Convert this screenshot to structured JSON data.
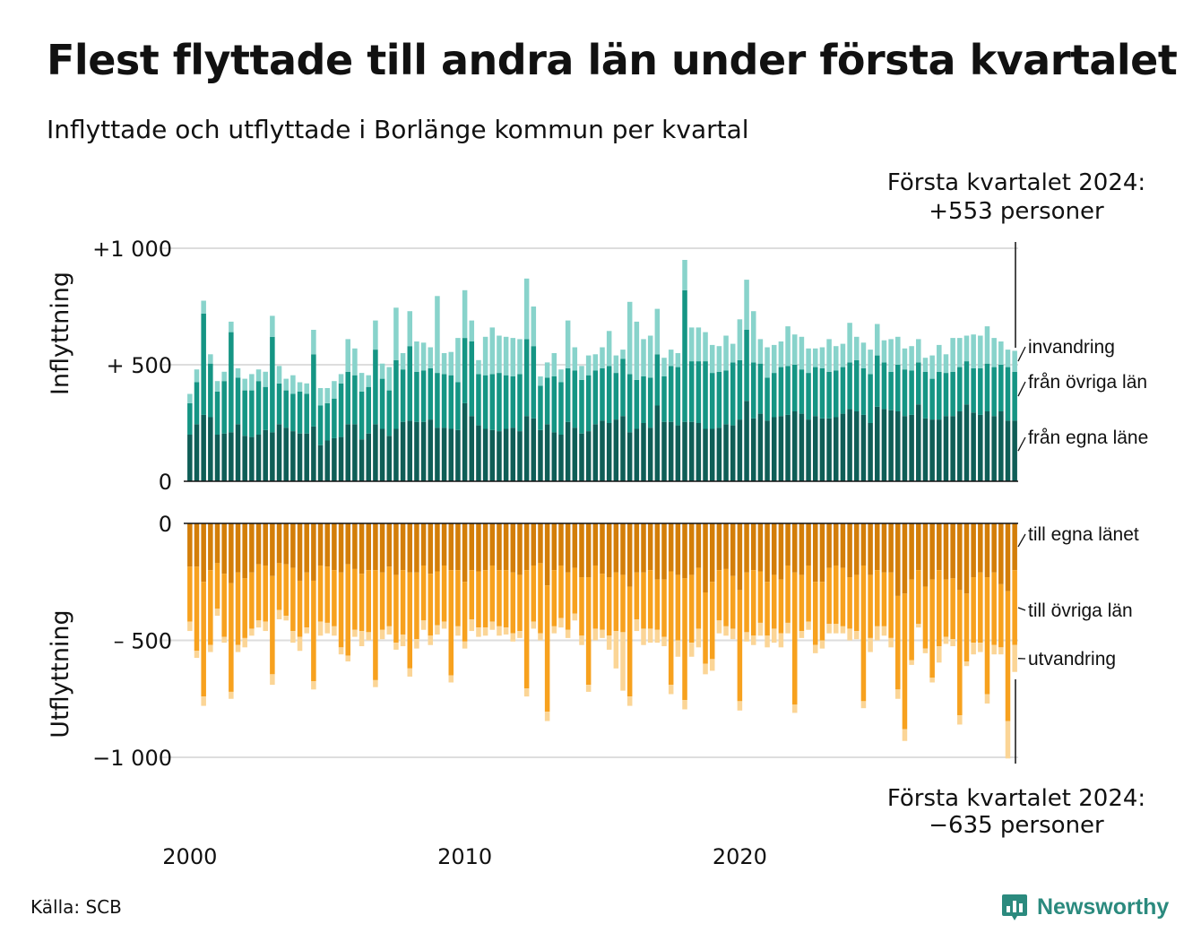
{
  "title": "Flest flyttade till andra län under första kvartalet",
  "subtitle": "Inflyttade och utflyttade i Borlänge kommun per kvartal",
  "source": "Källa: SCB",
  "brand": "Newsworthy",
  "annotations": {
    "in_line1": "Första kvartalet 2024:",
    "in_line2": "+553 personer",
    "out_line1": "Första kvartalet 2024:",
    "out_line2": "−635 personer"
  },
  "colors": {
    "in_egna": "#0f5e57",
    "in_ovriga": "#159584",
    "in_invandring": "#88d3cb",
    "out_egna": "#d37e09",
    "out_ovriga": "#f7a11e",
    "out_utvandring": "#fbd596",
    "brand": "#2b8a7e"
  },
  "chart_data": [
    {
      "type": "bar",
      "stacked": true,
      "panel": "Inflyttning",
      "ylabel": "Inflyttning",
      "ylim": [
        0,
        1000
      ],
      "yticks": [
        0,
        500,
        1000
      ],
      "ytick_labels": [
        "0",
        "+  500",
        "+1 000"
      ],
      "xticks": [
        2000,
        2010,
        2020
      ],
      "x_start": 2000,
      "x_step": 0.25,
      "series": [
        {
          "name": "från egna läne",
          "color": "#0f5e57",
          "values": [
            200,
            245,
            285,
            275,
            200,
            205,
            210,
            245,
            195,
            190,
            200,
            220,
            210,
            245,
            230,
            215,
            205,
            205,
            235,
            155,
            175,
            185,
            190,
            245,
            245,
            180,
            205,
            245,
            225,
            195,
            225,
            255,
            260,
            255,
            255,
            265,
            230,
            230,
            225,
            220,
            335,
            280,
            240,
            225,
            220,
            215,
            225,
            230,
            215,
            280,
            270,
            220,
            245,
            210,
            200,
            255,
            230,
            205,
            215,
            245,
            260,
            250,
            265,
            280,
            210,
            225,
            250,
            230,
            325,
            255,
            255,
            240,
            255,
            255,
            250,
            225,
            225,
            230,
            245,
            240,
            265,
            345,
            270,
            290,
            260,
            275,
            280,
            285,
            300,
            290,
            265,
            280,
            270,
            270,
            275,
            290,
            310,
            300,
            285,
            250,
            320,
            310,
            305,
            300,
            280,
            285,
            330,
            270,
            265,
            265,
            280,
            280,
            300,
            330,
            295,
            285,
            300,
            280,
            300,
            260,
            260
          ]
        },
        {
          "name": "från övriga län",
          "color": "#159584",
          "values": [
            135,
            180,
            435,
            230,
            185,
            225,
            430,
            200,
            195,
            200,
            230,
            185,
            410,
            175,
            160,
            160,
            180,
            170,
            310,
            170,
            160,
            170,
            230,
            225,
            210,
            205,
            200,
            320,
            215,
            195,
            295,
            225,
            320,
            215,
            220,
            220,
            235,
            230,
            230,
            205,
            280,
            320,
            220,
            230,
            240,
            250,
            230,
            220,
            245,
            330,
            310,
            190,
            200,
            240,
            225,
            230,
            245,
            230,
            240,
            230,
            225,
            245,
            200,
            245,
            250,
            210,
            200,
            215,
            220,
            195,
            240,
            250,
            565,
            260,
            265,
            290,
            240,
            240,
            230,
            270,
            255,
            305,
            240,
            215,
            185,
            190,
            210,
            210,
            200,
            190,
            200,
            210,
            215,
            200,
            200,
            200,
            200,
            220,
            200,
            210,
            220,
            200,
            165,
            200,
            200,
            190,
            180,
            200,
            175,
            205,
            185,
            190,
            190,
            185,
            190,
            200,
            205,
            210,
            200,
            230,
            210
          ]
        },
        {
          "name": "invandring",
          "color": "#88d3cb",
          "values": [
            40,
            55,
            55,
            40,
            45,
            40,
            45,
            40,
            50,
            70,
            50,
            65,
            90,
            75,
            50,
            80,
            40,
            45,
            105,
            75,
            65,
            75,
            40,
            140,
            115,
            80,
            50,
            125,
            65,
            100,
            225,
            70,
            150,
            130,
            120,
            90,
            330,
            90,
            100,
            190,
            205,
            90,
            60,
            165,
            200,
            160,
            165,
            165,
            150,
            260,
            170,
            40,
            65,
            100,
            55,
            205,
            100,
            60,
            85,
            70,
            90,
            150,
            75,
            40,
            310,
            250,
            160,
            180,
            195,
            80,
            70,
            60,
            130,
            145,
            145,
            125,
            120,
            110,
            150,
            80,
            175,
            215,
            220,
            105,
            130,
            120,
            110,
            170,
            130,
            140,
            105,
            80,
            90,
            140,
            105,
            100,
            170,
            100,
            110,
            105,
            135,
            95,
            140,
            120,
            90,
            105,
            100,
            60,
            100,
            115,
            80,
            145,
            125,
            110,
            145,
            140,
            160,
            125,
            100,
            75,
            90
          ]
        }
      ]
    },
    {
      "type": "bar",
      "stacked": true,
      "panel": "Utflyttning",
      "ylabel": "Utflyttning",
      "ylim": [
        -1000,
        0
      ],
      "yticks": [
        0,
        -500,
        -1000
      ],
      "ytick_labels": [
        "0",
        "–  500",
        "−1 000"
      ],
      "xticks": [
        2000,
        2010,
        2020
      ],
      "x_start": 2000,
      "x_step": 0.25,
      "series": [
        {
          "name": "till egna länet",
          "color": "#d37e09",
          "values": [
            -185,
            -185,
            -250,
            -200,
            -170,
            -215,
            -255,
            -210,
            -235,
            -210,
            -175,
            -180,
            -225,
            -170,
            -175,
            -190,
            -245,
            -210,
            -245,
            -180,
            -185,
            -200,
            -210,
            -175,
            -195,
            -215,
            -200,
            -200,
            -210,
            -185,
            -220,
            -200,
            -210,
            -210,
            -180,
            -215,
            -205,
            -180,
            -200,
            -200,
            -250,
            -200,
            -205,
            -200,
            -180,
            -200,
            -200,
            -210,
            -220,
            -200,
            -180,
            -170,
            -265,
            -200,
            -180,
            -210,
            -190,
            -230,
            -230,
            -180,
            -215,
            -230,
            -210,
            -220,
            -270,
            -210,
            -210,
            -200,
            -240,
            -240,
            -205,
            -220,
            -235,
            -220,
            -190,
            -295,
            -250,
            -200,
            -195,
            -225,
            -285,
            -210,
            -200,
            -205,
            -250,
            -220,
            -240,
            -180,
            -210,
            -220,
            -180,
            -250,
            -250,
            -190,
            -180,
            -190,
            -230,
            -220,
            -180,
            -220,
            -200,
            -210,
            -210,
            -310,
            -300,
            -240,
            -200,
            -270,
            -240,
            -200,
            -240,
            -235,
            -285,
            -300,
            -230,
            -210,
            -230,
            -210,
            -260,
            -290,
            -200
          ]
        },
        {
          "name": "till övriga län",
          "color": "#f7a11e",
          "values": [
            -235,
            -360,
            -490,
            -320,
            -195,
            -270,
            -465,
            -310,
            -255,
            -240,
            -240,
            -240,
            -420,
            -200,
            -220,
            -270,
            -240,
            -235,
            -430,
            -240,
            -240,
            -240,
            -320,
            -390,
            -260,
            -245,
            -265,
            -470,
            -245,
            -255,
            -290,
            -275,
            -410,
            -285,
            -235,
            -265,
            -230,
            -240,
            -450,
            -240,
            -255,
            -210,
            -240,
            -245,
            -240,
            -240,
            -245,
            -260,
            -240,
            -505,
            -240,
            -300,
            -540,
            -240,
            -225,
            -245,
            -195,
            -250,
            -460,
            -270,
            -240,
            -250,
            -250,
            -245,
            -470,
            -200,
            -240,
            -250,
            -215,
            -245,
            -485,
            -280,
            -520,
            -290,
            -260,
            -305,
            -330,
            -215,
            -245,
            -225,
            -475,
            -255,
            -280,
            -220,
            -230,
            -230,
            -230,
            -245,
            -565,
            -240,
            -240,
            -270,
            -250,
            -240,
            -250,
            -250,
            -220,
            -240,
            -580,
            -270,
            -240,
            -230,
            -280,
            -400,
            -580,
            -345,
            -230,
            -265,
            -420,
            -325,
            -245,
            -260,
            -535,
            -290,
            -280,
            -300,
            -500,
            -310,
            -270,
            -555,
            -320
          ]
        },
        {
          "name": "utvandring",
          "color": "#fbd596",
          "values": [
            -40,
            -30,
            -40,
            -30,
            -30,
            -25,
            -30,
            -30,
            -40,
            -30,
            -30,
            -40,
            -45,
            -40,
            -20,
            -50,
            -60,
            -25,
            -35,
            -60,
            -45,
            -40,
            -30,
            -25,
            -30,
            -65,
            -35,
            -30,
            -40,
            -35,
            -30,
            -50,
            -35,
            -40,
            -40,
            -40,
            -40,
            -30,
            -30,
            -40,
            -30,
            -50,
            -40,
            -35,
            -35,
            -40,
            -30,
            -35,
            -30,
            -35,
            -30,
            -30,
            -40,
            -30,
            -40,
            -35,
            -30,
            -40,
            -30,
            -50,
            -35,
            -60,
            -160,
            -250,
            -40,
            -50,
            -70,
            -60,
            -55,
            -40,
            -40,
            -70,
            -40,
            -60,
            -80,
            -45,
            -50,
            -55,
            -40,
            -45,
            -40,
            -40,
            -40,
            -55,
            -50,
            -60,
            -60,
            -45,
            -35,
            -30,
            -35,
            -35,
            -35,
            -40,
            -40,
            -30,
            -50,
            -35,
            -30,
            -60,
            -60,
            -40,
            -40,
            -40,
            -50,
            -20,
            -15,
            -20,
            -20,
            -70,
            -30,
            -30,
            -40,
            -20,
            -50,
            -40,
            -40,
            -40,
            -30,
            -160,
            -115
          ]
        }
      ]
    }
  ]
}
